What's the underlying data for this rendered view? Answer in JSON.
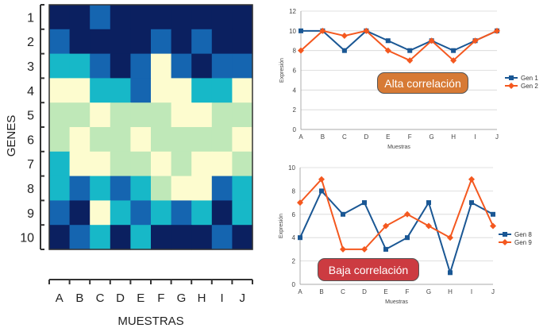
{
  "chart_data": [
    {
      "type": "heatmap",
      "ylabel": "GENES",
      "xlabel": "MUESTRAS",
      "rows": [
        "1",
        "2",
        "3",
        "4",
        "5",
        "6",
        "7",
        "8",
        "9",
        "10"
      ],
      "columns": [
        "A",
        "B",
        "C",
        "D",
        "E",
        "F",
        "G",
        "H",
        "I",
        "J"
      ],
      "color_levels": [
        "#0b2060",
        "#1565b0",
        "#17b8c8",
        "#bfe8b8",
        "#fdfccf"
      ],
      "values": [
        [
          0,
          0,
          1,
          0,
          0,
          0,
          0,
          0,
          0,
          0
        ],
        [
          1,
          0,
          0,
          0,
          0,
          1,
          0,
          1,
          0,
          0
        ],
        [
          2,
          2,
          1,
          0,
          1,
          4,
          1,
          0,
          1,
          1
        ],
        [
          4,
          4,
          2,
          2,
          1,
          4,
          4,
          2,
          2,
          4
        ],
        [
          3,
          3,
          4,
          3,
          3,
          3,
          4,
          4,
          3,
          3
        ],
        [
          3,
          4,
          3,
          3,
          4,
          3,
          3,
          3,
          3,
          4
        ],
        [
          2,
          4,
          4,
          3,
          3,
          4,
          3,
          4,
          4,
          3
        ],
        [
          2,
          1,
          2,
          1,
          2,
          3,
          4,
          4,
          1,
          2
        ],
        [
          1,
          0,
          4,
          2,
          1,
          2,
          1,
          2,
          0,
          2
        ],
        [
          0,
          1,
          2,
          0,
          2,
          0,
          0,
          0,
          1,
          0
        ]
      ]
    },
    {
      "type": "line",
      "title": "",
      "xlabel": "Muestras",
      "ylabel": "Expresión",
      "categories": [
        "A",
        "B",
        "C",
        "D",
        "E",
        "F",
        "G",
        "H",
        "I",
        "J"
      ],
      "ylim": [
        0,
        12
      ],
      "yticks": [
        0,
        2,
        4,
        6,
        8,
        10,
        12
      ],
      "legend": "right",
      "annotation": "Alta correlación",
      "annotation_color": "#d77a35",
      "series": [
        {
          "name": "Gen 1",
          "color": "#1a5794",
          "marker": "square",
          "values": [
            10,
            10,
            8,
            10,
            9,
            8,
            9,
            8,
            9,
            10
          ]
        },
        {
          "name": "Gen 2",
          "color": "#f4581f",
          "marker": "diamond",
          "values": [
            8,
            10,
            9.5,
            10,
            8,
            7,
            9,
            7,
            9,
            10
          ]
        }
      ]
    },
    {
      "type": "line",
      "title": "",
      "xlabel": "Muestras",
      "ylabel": "Expresión",
      "categories": [
        "A",
        "B",
        "C",
        "D",
        "E",
        "F",
        "G",
        "H",
        "I",
        "J"
      ],
      "ylim": [
        0,
        10
      ],
      "yticks": [
        0,
        2,
        4,
        6,
        8,
        10
      ],
      "legend": "right",
      "annotation": "Baja correlación",
      "annotation_color": "#cc3b41",
      "series": [
        {
          "name": "Gen 8",
          "color": "#1a5794",
          "marker": "square",
          "values": [
            4,
            8,
            6,
            7,
            3,
            4,
            7,
            1,
            7,
            6
          ]
        },
        {
          "name": "Gen 9",
          "color": "#f4581f",
          "marker": "diamond",
          "values": [
            7,
            9,
            3,
            3,
            5,
            6,
            5,
            4,
            9,
            5
          ]
        }
      ]
    }
  ]
}
